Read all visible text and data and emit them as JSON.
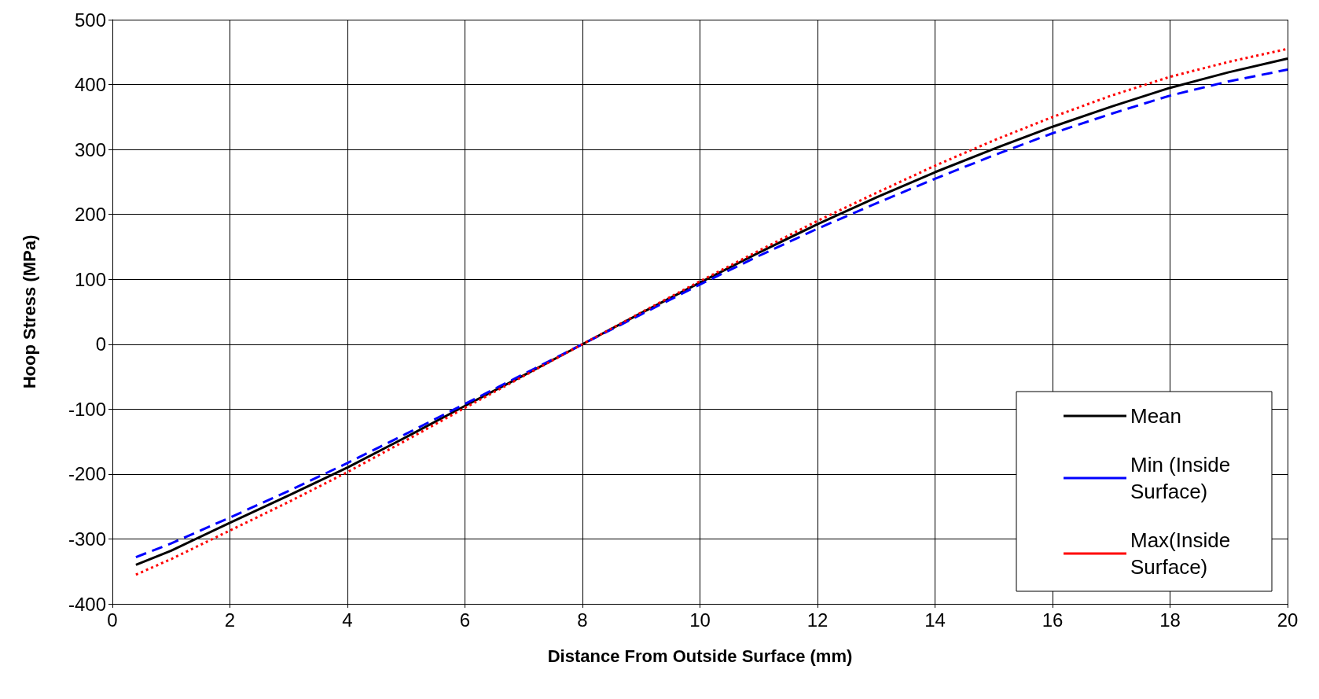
{
  "chart_data": {
    "type": "line",
    "xlabel": "Distance From Outside Surface (mm)",
    "ylabel": "Hoop Stress (MPa)",
    "x": [
      0.4,
      1,
      2,
      3,
      4,
      5,
      6,
      7,
      8,
      9,
      10,
      11,
      12,
      13,
      14,
      15,
      16,
      17,
      18,
      19,
      20
    ],
    "series": [
      {
        "name": "Mean",
        "color": "#000000",
        "line_style": "solid",
        "values": [
          -340,
          -318,
          -275,
          -233,
          -190,
          -143,
          -95,
          -48,
          0,
          48,
          95,
          141,
          185,
          226,
          265,
          301,
          335,
          366,
          395,
          419,
          440
        ]
      },
      {
        "name": "Min (Inside Surface)",
        "color": "#0000ff",
        "line_style": "dashed",
        "values": [
          -328,
          -307,
          -267,
          -226,
          -183,
          -138,
          -92,
          -46,
          0,
          46,
          92,
          136,
          178,
          217,
          255,
          291,
          325,
          355,
          383,
          405,
          423
        ]
      },
      {
        "name": "Max(Inside Surface)",
        "color": "#ff0000",
        "line_style": "dotted",
        "values": [
          -355,
          -331,
          -287,
          -243,
          -197,
          -148,
          -98,
          -49,
          0,
          49,
          97,
          144,
          190,
          233,
          275,
          314,
          350,
          383,
          412,
          435,
          455
        ]
      }
    ],
    "xlim": [
      0,
      20
    ],
    "xticks": [
      0,
      2,
      4,
      6,
      8,
      10,
      12,
      14,
      16,
      18,
      20
    ],
    "ylim": [
      -400,
      500
    ],
    "yticks": [
      -400,
      -300,
      -200,
      -100,
      0,
      100,
      200,
      300,
      400,
      500
    ],
    "grid": true,
    "legend": "right",
    "marker": "none"
  }
}
